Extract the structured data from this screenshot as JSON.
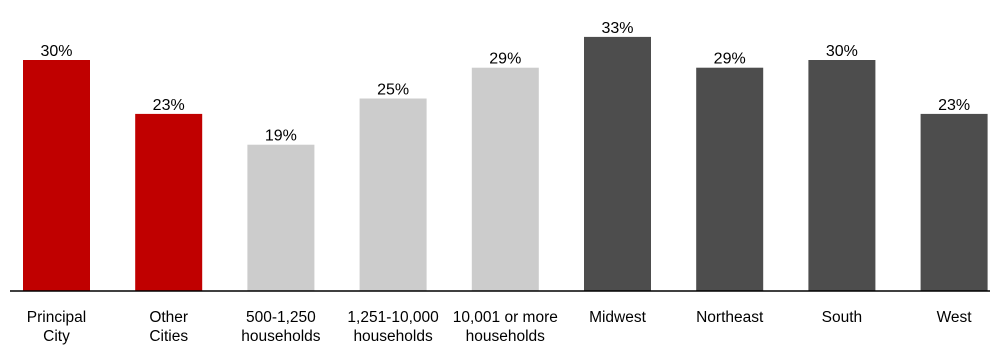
{
  "chart_data": {
    "type": "bar",
    "categories": [
      [
        "Principal",
        "City"
      ],
      [
        "Other",
        "Cities"
      ],
      [
        "500-1,250",
        "households"
      ],
      [
        "1,251-10,000",
        "households"
      ],
      [
        "10,001 or more",
        "households"
      ],
      [
        "Midwest"
      ],
      [
        "Northeast"
      ],
      [
        "South"
      ],
      [
        "West"
      ]
    ],
    "values": [
      30,
      23,
      19,
      25,
      29,
      33,
      29,
      30,
      23
    ],
    "value_labels": [
      "30%",
      "23%",
      "19%",
      "25%",
      "29%",
      "33%",
      "29%",
      "30%",
      "23%"
    ],
    "colors": [
      "#c00000",
      "#c00000",
      "#cccccc",
      "#cccccc",
      "#cccccc",
      "#4d4d4d",
      "#4d4d4d",
      "#4d4d4d",
      "#4d4d4d"
    ],
    "value_unit": "%",
    "title": "",
    "xlabel": "",
    "ylabel": "",
    "ylim": [
      0,
      35
    ],
    "grid": false,
    "legend": "none",
    "baseline_color": "#000000"
  }
}
